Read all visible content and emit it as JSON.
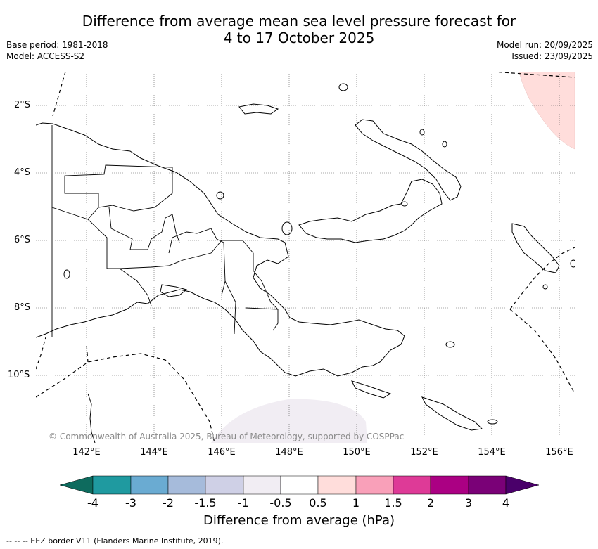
{
  "title_line1": "Difference from average mean sea level pressure forecast for",
  "title_line2": "4 to 17 October 2025",
  "base_period": "Base period: 1981-2018",
  "model": "Model: ACCESS-S2",
  "model_run": "Model run: 20/09/2025",
  "issued": "Issued: 23/09/2025",
  "copyright": "© Commonwealth of Australia 2025, Bureau of Meteorology, supported by COSPPac",
  "lat_labels": [
    "2°S",
    "4°S",
    "6°S",
    "8°S",
    "10°S"
  ],
  "lon_labels": [
    "142°E",
    "144°E",
    "146°E",
    "148°E",
    "150°E",
    "152°E",
    "154°E",
    "156°E"
  ],
  "colorbar": {
    "title": "Difference from average (hPa)",
    "ticks": [
      "-4",
      "-3",
      "-2",
      "-1.5",
      "-1",
      "-0.5",
      "0.5",
      "1",
      "1.5",
      "2",
      "3",
      "4"
    ],
    "colors": [
      "#0e6b5e",
      "#1f9aa0",
      "#6aabd2",
      "#a6bbdb",
      "#cfd0e6",
      "#f1edf3",
      "#ffffff",
      "#ffdddb",
      "#f9a0b9",
      "#de3a97",
      "#ab0083",
      "#7a0177",
      "#4a006a"
    ]
  },
  "legend_note": "--  --  -- EEZ border V11 (Flanders Marine Institute, 2019)."
}
